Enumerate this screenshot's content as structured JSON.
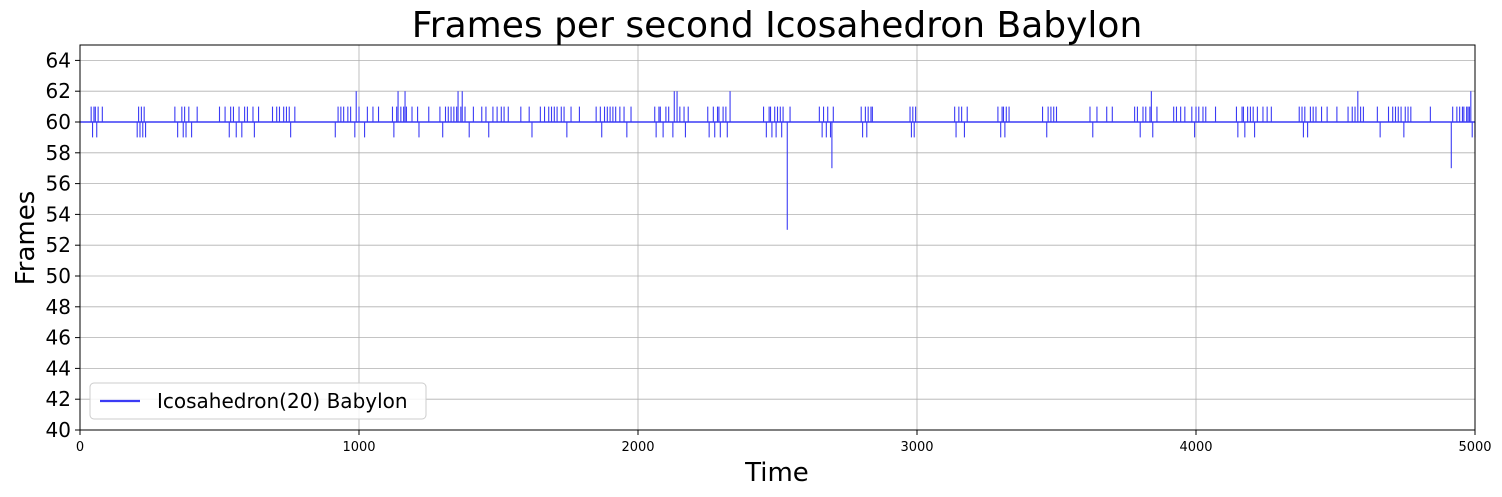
{
  "chart_data": {
    "type": "line",
    "title": "Frames per second Icosahedron Babylon",
    "xlabel": "Time",
    "ylabel": "Frames",
    "xlim": [
      0,
      5000
    ],
    "ylim": [
      40,
      65
    ],
    "xticks": [
      0,
      1000,
      2000,
      3000,
      4000,
      5000
    ],
    "yticks": [
      40,
      42,
      44,
      46,
      48,
      50,
      52,
      54,
      56,
      58,
      60,
      62,
      64
    ],
    "grid": true,
    "legend_position": "lower-left",
    "series": [
      {
        "name": "Icosahedron(20) Babylon",
        "color": "#3b3bf5",
        "baseline": 60,
        "deviations": [
          [
            40,
            61
          ],
          [
            45,
            59
          ],
          [
            50,
            61
          ],
          [
            55,
            61
          ],
          [
            60,
            59
          ],
          [
            65,
            61
          ],
          [
            80,
            61
          ],
          [
            205,
            59
          ],
          [
            210,
            61
          ],
          [
            215,
            59
          ],
          [
            220,
            61
          ],
          [
            225,
            59
          ],
          [
            230,
            61
          ],
          [
            235,
            59
          ],
          [
            340,
            61
          ],
          [
            350,
            59
          ],
          [
            365,
            61
          ],
          [
            370,
            59
          ],
          [
            375,
            61
          ],
          [
            380,
            59
          ],
          [
            390,
            61
          ],
          [
            400,
            59
          ],
          [
            420,
            61
          ],
          [
            500,
            61
          ],
          [
            520,
            61
          ],
          [
            535,
            59
          ],
          [
            540,
            61
          ],
          [
            550,
            61
          ],
          [
            560,
            59
          ],
          [
            570,
            61
          ],
          [
            580,
            59
          ],
          [
            590,
            61
          ],
          [
            600,
            61
          ],
          [
            620,
            61
          ],
          [
            625,
            59
          ],
          [
            640,
            61
          ],
          [
            690,
            61
          ],
          [
            705,
            61
          ],
          [
            715,
            61
          ],
          [
            730,
            61
          ],
          [
            740,
            61
          ],
          [
            750,
            61
          ],
          [
            755,
            59
          ],
          [
            770,
            61
          ],
          [
            915,
            59
          ],
          [
            925,
            61
          ],
          [
            935,
            61
          ],
          [
            945,
            61
          ],
          [
            960,
            61
          ],
          [
            970,
            61
          ],
          [
            985,
            59
          ],
          [
            990,
            62
          ],
          [
            1000,
            61
          ],
          [
            1020,
            59
          ],
          [
            1030,
            61
          ],
          [
            1050,
            61
          ],
          [
            1070,
            61
          ],
          [
            1120,
            61
          ],
          [
            1125,
            59
          ],
          [
            1135,
            61
          ],
          [
            1140,
            62
          ],
          [
            1150,
            61
          ],
          [
            1160,
            61
          ],
          [
            1165,
            62
          ],
          [
            1170,
            61
          ],
          [
            1190,
            61
          ],
          [
            1210,
            61
          ],
          [
            1215,
            59
          ],
          [
            1250,
            61
          ],
          [
            1290,
            61
          ],
          [
            1300,
            59
          ],
          [
            1310,
            61
          ],
          [
            1320,
            61
          ],
          [
            1330,
            61
          ],
          [
            1340,
            61
          ],
          [
            1350,
            61
          ],
          [
            1355,
            62
          ],
          [
            1365,
            61
          ],
          [
            1370,
            62
          ],
          [
            1380,
            61
          ],
          [
            1395,
            59
          ],
          [
            1410,
            61
          ],
          [
            1440,
            61
          ],
          [
            1455,
            61
          ],
          [
            1465,
            59
          ],
          [
            1480,
            61
          ],
          [
            1495,
            61
          ],
          [
            1510,
            61
          ],
          [
            1520,
            61
          ],
          [
            1535,
            61
          ],
          [
            1580,
            61
          ],
          [
            1610,
            61
          ],
          [
            1620,
            59
          ],
          [
            1650,
            61
          ],
          [
            1665,
            61
          ],
          [
            1680,
            61
          ],
          [
            1690,
            61
          ],
          [
            1700,
            61
          ],
          [
            1710,
            61
          ],
          [
            1725,
            61
          ],
          [
            1735,
            61
          ],
          [
            1745,
            59
          ],
          [
            1760,
            61
          ],
          [
            1790,
            61
          ],
          [
            1850,
            61
          ],
          [
            1865,
            61
          ],
          [
            1870,
            59
          ],
          [
            1880,
            61
          ],
          [
            1890,
            61
          ],
          [
            1900,
            61
          ],
          [
            1910,
            61
          ],
          [
            1920,
            61
          ],
          [
            1935,
            61
          ],
          [
            1950,
            61
          ],
          [
            1960,
            59
          ],
          [
            1975,
            61
          ],
          [
            2060,
            61
          ],
          [
            2065,
            59
          ],
          [
            2075,
            61
          ],
          [
            2080,
            61
          ],
          [
            2090,
            59
          ],
          [
            2100,
            61
          ],
          [
            2110,
            61
          ],
          [
            2125,
            59
          ],
          [
            2130,
            62
          ],
          [
            2140,
            62
          ],
          [
            2150,
            61
          ],
          [
            2165,
            61
          ],
          [
            2170,
            59
          ],
          [
            2180,
            61
          ],
          [
            2250,
            61
          ],
          [
            2255,
            59
          ],
          [
            2270,
            61
          ],
          [
            2275,
            59
          ],
          [
            2285,
            61
          ],
          [
            2290,
            61
          ],
          [
            2295,
            59
          ],
          [
            2305,
            61
          ],
          [
            2315,
            61
          ],
          [
            2320,
            59
          ],
          [
            2330,
            62
          ],
          [
            2450,
            61
          ],
          [
            2460,
            59
          ],
          [
            2470,
            61
          ],
          [
            2475,
            61
          ],
          [
            2480,
            59
          ],
          [
            2490,
            61
          ],
          [
            2495,
            59
          ],
          [
            2500,
            61
          ],
          [
            2510,
            61
          ],
          [
            2515,
            59
          ],
          [
            2520,
            61
          ],
          [
            2535,
            53
          ],
          [
            2545,
            61
          ],
          [
            2650,
            61
          ],
          [
            2660,
            59
          ],
          [
            2665,
            61
          ],
          [
            2675,
            59
          ],
          [
            2680,
            61
          ],
          [
            2690,
            59
          ],
          [
            2695,
            57
          ],
          [
            2700,
            61
          ],
          [
            2800,
            61
          ],
          [
            2805,
            59
          ],
          [
            2815,
            61
          ],
          [
            2820,
            59
          ],
          [
            2825,
            61
          ],
          [
            2835,
            61
          ],
          [
            2840,
            61
          ],
          [
            2975,
            61
          ],
          [
            2980,
            59
          ],
          [
            2985,
            61
          ],
          [
            2990,
            59
          ],
          [
            2995,
            61
          ],
          [
            3135,
            61
          ],
          [
            3140,
            59
          ],
          [
            3150,
            61
          ],
          [
            3160,
            61
          ],
          [
            3170,
            59
          ],
          [
            3180,
            61
          ],
          [
            3290,
            61
          ],
          [
            3300,
            59
          ],
          [
            3305,
            61
          ],
          [
            3310,
            61
          ],
          [
            3315,
            59
          ],
          [
            3320,
            61
          ],
          [
            3330,
            61
          ],
          [
            3450,
            61
          ],
          [
            3465,
            59
          ],
          [
            3470,
            61
          ],
          [
            3480,
            61
          ],
          [
            3490,
            61
          ],
          [
            3500,
            61
          ],
          [
            3620,
            61
          ],
          [
            3630,
            59
          ],
          [
            3645,
            61
          ],
          [
            3680,
            61
          ],
          [
            3700,
            61
          ],
          [
            3780,
            61
          ],
          [
            3790,
            61
          ],
          [
            3800,
            59
          ],
          [
            3810,
            61
          ],
          [
            3820,
            61
          ],
          [
            3835,
            61
          ],
          [
            3840,
            62
          ],
          [
            3845,
            59
          ],
          [
            3860,
            61
          ],
          [
            3920,
            61
          ],
          [
            3930,
            61
          ],
          [
            3945,
            61
          ],
          [
            3960,
            61
          ],
          [
            3985,
            61
          ],
          [
            3995,
            59
          ],
          [
            4000,
            61
          ],
          [
            4010,
            61
          ],
          [
            4025,
            61
          ],
          [
            4035,
            61
          ],
          [
            4070,
            61
          ],
          [
            4145,
            61
          ],
          [
            4150,
            59
          ],
          [
            4165,
            61
          ],
          [
            4170,
            61
          ],
          [
            4175,
            59
          ],
          [
            4185,
            61
          ],
          [
            4195,
            61
          ],
          [
            4205,
            61
          ],
          [
            4210,
            59
          ],
          [
            4220,
            61
          ],
          [
            4240,
            61
          ],
          [
            4255,
            61
          ],
          [
            4270,
            61
          ],
          [
            4370,
            61
          ],
          [
            4380,
            61
          ],
          [
            4385,
            59
          ],
          [
            4390,
            61
          ],
          [
            4400,
            59
          ],
          [
            4410,
            61
          ],
          [
            4420,
            61
          ],
          [
            4430,
            61
          ],
          [
            4450,
            61
          ],
          [
            4470,
            61
          ],
          [
            4505,
            61
          ],
          [
            4545,
            61
          ],
          [
            4560,
            61
          ],
          [
            4570,
            61
          ],
          [
            4580,
            62
          ],
          [
            4590,
            61
          ],
          [
            4600,
            61
          ],
          [
            4650,
            61
          ],
          [
            4660,
            59
          ],
          [
            4690,
            61
          ],
          [
            4705,
            61
          ],
          [
            4715,
            61
          ],
          [
            4725,
            61
          ],
          [
            4735,
            61
          ],
          [
            4745,
            59
          ],
          [
            4750,
            61
          ],
          [
            4760,
            61
          ],
          [
            4770,
            61
          ],
          [
            4840,
            61
          ],
          [
            4915,
            57
          ],
          [
            4920,
            61
          ],
          [
            4935,
            61
          ],
          [
            4945,
            61
          ],
          [
            4955,
            61
          ],
          [
            4960,
            61
          ],
          [
            4970,
            61
          ],
          [
            4975,
            61
          ],
          [
            4980,
            61
          ],
          [
            4985,
            62
          ],
          [
            4990,
            59
          ],
          [
            5000,
            59
          ]
        ]
      }
    ]
  }
}
